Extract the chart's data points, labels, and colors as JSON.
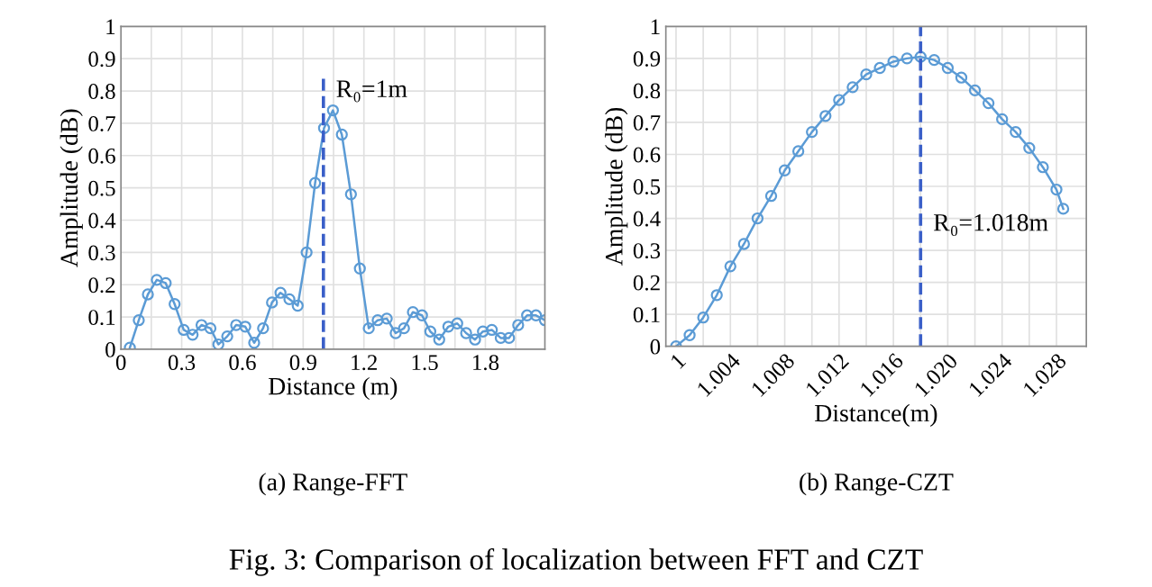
{
  "chart_data": [
    {
      "type": "line",
      "xlabel": "Distance (m)",
      "ylabel": "Amplitude (dB)",
      "annotations": [
        "(a) Range-FFT",
        "Fig. 3: Comparison of localization between FFT and CZT"
      ],
      "x": [
        0.044,
        0.088,
        0.133,
        0.177,
        0.221,
        0.265,
        0.31,
        0.354,
        0.398,
        0.442,
        0.481,
        0.525,
        0.569,
        0.614,
        0.658,
        0.702,
        0.746,
        0.788,
        0.832,
        0.873,
        0.917,
        0.959,
        1.003,
        1.047,
        1.091,
        1.136,
        1.18,
        1.224,
        1.268,
        1.313,
        1.357,
        1.398,
        1.442,
        1.487,
        1.528,
        1.572,
        1.617,
        1.661,
        1.705,
        1.749,
        1.788,
        1.832,
        1.876,
        1.917,
        1.962,
        2.006,
        2.05,
        2.094
      ],
      "series": [
        {
          "color": "#5b9bd5",
          "values": [
            0.005,
            0.09,
            0.17,
            0.215,
            0.205,
            0.14,
            0.06,
            0.045,
            0.075,
            0.065,
            0.015,
            0.04,
            0.075,
            0.07,
            0.02,
            0.065,
            0.145,
            0.175,
            0.155,
            0.135,
            0.3,
            0.515,
            0.685,
            0.74,
            0.665,
            0.48,
            0.25,
            0.065,
            0.09,
            0.095,
            0.05,
            0.065,
            0.115,
            0.105,
            0.055,
            0.03,
            0.07,
            0.08,
            0.05,
            0.03,
            0.055,
            0.06,
            0.035,
            0.035,
            0.075,
            0.105,
            0.105,
            0.09
          ]
        }
      ],
      "marker": "circle",
      "grid": true,
      "xlim": [
        0,
        2.094
      ],
      "ylim": [
        0,
        1
      ],
      "xticks": [
        0,
        {
          "value": 0.15,
          "label": null
        },
        0.3,
        {
          "value": 0.45,
          "label": null
        },
        0.6,
        {
          "value": 0.75,
          "label": null
        },
        0.9,
        {
          "value": 1.05,
          "label": null
        },
        1.2,
        {
          "value": 1.35,
          "label": null
        },
        1.5,
        {
          "value": 1.65,
          "label": null
        },
        1.8,
        {
          "value": 1.95,
          "label": null
        }
      ],
      "yticks": [
        0,
        0.1,
        0.2,
        0.3,
        0.4,
        0.5,
        0.6,
        0.7,
        0.8,
        0.9,
        1
      ],
      "ref_lines": [
        {
          "axis": "x",
          "value": 1,
          "label": "R₀=1m",
          "color": "#3a5fc8",
          "line_style": "dashed"
        }
      ]
    },
    {
      "type": "line",
      "xlabel": "Distance(m)",
      "ylabel": "Amplitude (dB)",
      "annotations": [
        "(b) Range-CZT"
      ],
      "x": [
        1.0,
        1.001,
        1.002,
        1.003,
        1.004,
        1.005,
        1.006,
        1.007,
        1.008,
        1.009,
        1.01,
        1.011,
        1.012,
        1.013,
        1.014,
        1.015,
        1.016,
        1.017,
        1.018,
        1.019,
        1.02,
        1.021,
        1.022,
        1.023,
        1.024,
        1.025,
        1.026,
        1.027,
        1.028,
        1.0285
      ],
      "series": [
        {
          "color": "#5b9bd5",
          "values": [
            0.0,
            0.035,
            0.09,
            0.16,
            0.25,
            0.32,
            0.4,
            0.47,
            0.55,
            0.61,
            0.67,
            0.72,
            0.77,
            0.81,
            0.85,
            0.87,
            0.89,
            0.9,
            0.905,
            0.895,
            0.87,
            0.84,
            0.8,
            0.76,
            0.71,
            0.67,
            0.62,
            0.56,
            0.49,
            0.43
          ]
        }
      ],
      "marker": "circle",
      "grid": true,
      "xlim": [
        0.99925,
        1.0302
      ],
      "ylim": [
        0,
        1
      ],
      "xticks": [
        1,
        {
          "value": 1.002,
          "label": null
        },
        1.004,
        {
          "value": 1.006,
          "label": null
        },
        1.008,
        {
          "value": 1.01,
          "label": null
        },
        1.012,
        {
          "value": 1.014,
          "label": null
        },
        1.016,
        {
          "value": 1.018,
          "label": null
        },
        {
          "value": 1.02,
          "label": "1.020"
        },
        {
          "value": 1.022,
          "label": null
        },
        1.024,
        {
          "value": 1.026,
          "label": null
        },
        1.028
      ],
      "yticks": [
        0,
        0.1,
        0.2,
        0.3,
        0.4,
        0.5,
        0.6,
        0.7,
        0.8,
        0.9,
        1
      ],
      "ref_lines": [
        {
          "axis": "x",
          "value": 1.018,
          "label": "R₀=1.018m",
          "color": "#3a5fc8",
          "line_style": "dashed"
        }
      ]
    }
  ]
}
